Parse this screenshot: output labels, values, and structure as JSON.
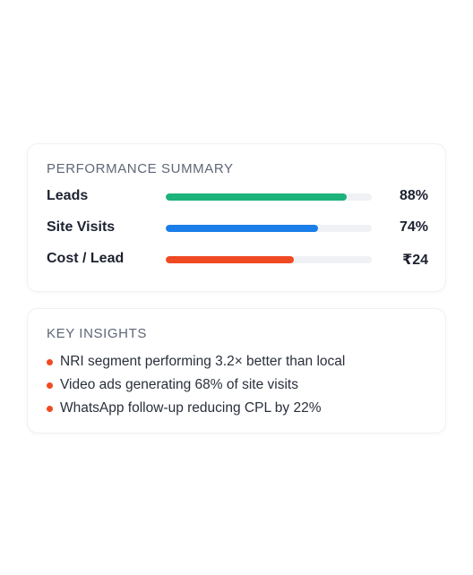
{
  "performance_summary": {
    "title": "PERFORMANCE SUMMARY",
    "metrics": [
      {
        "label": "Leads",
        "value": "88%",
        "fill_fraction": 0.88,
        "color": "#1db37a"
      },
      {
        "label": "Site Visits",
        "value": "74%",
        "fill_fraction": 0.74,
        "color": "#1a7ee8"
      },
      {
        "label": "Cost / Lead",
        "value": "₹24",
        "fill_fraction": 0.62,
        "color": "#f04a23"
      }
    ]
  },
  "key_insights": {
    "title": "KEY INSIGHTS",
    "bullet_color": "#f04a23",
    "items": [
      "NRI segment performing 3.2× better than local",
      "Video ads generating 68% of site visits",
      "WhatsApp follow-up reducing CPL by 22%"
    ]
  }
}
